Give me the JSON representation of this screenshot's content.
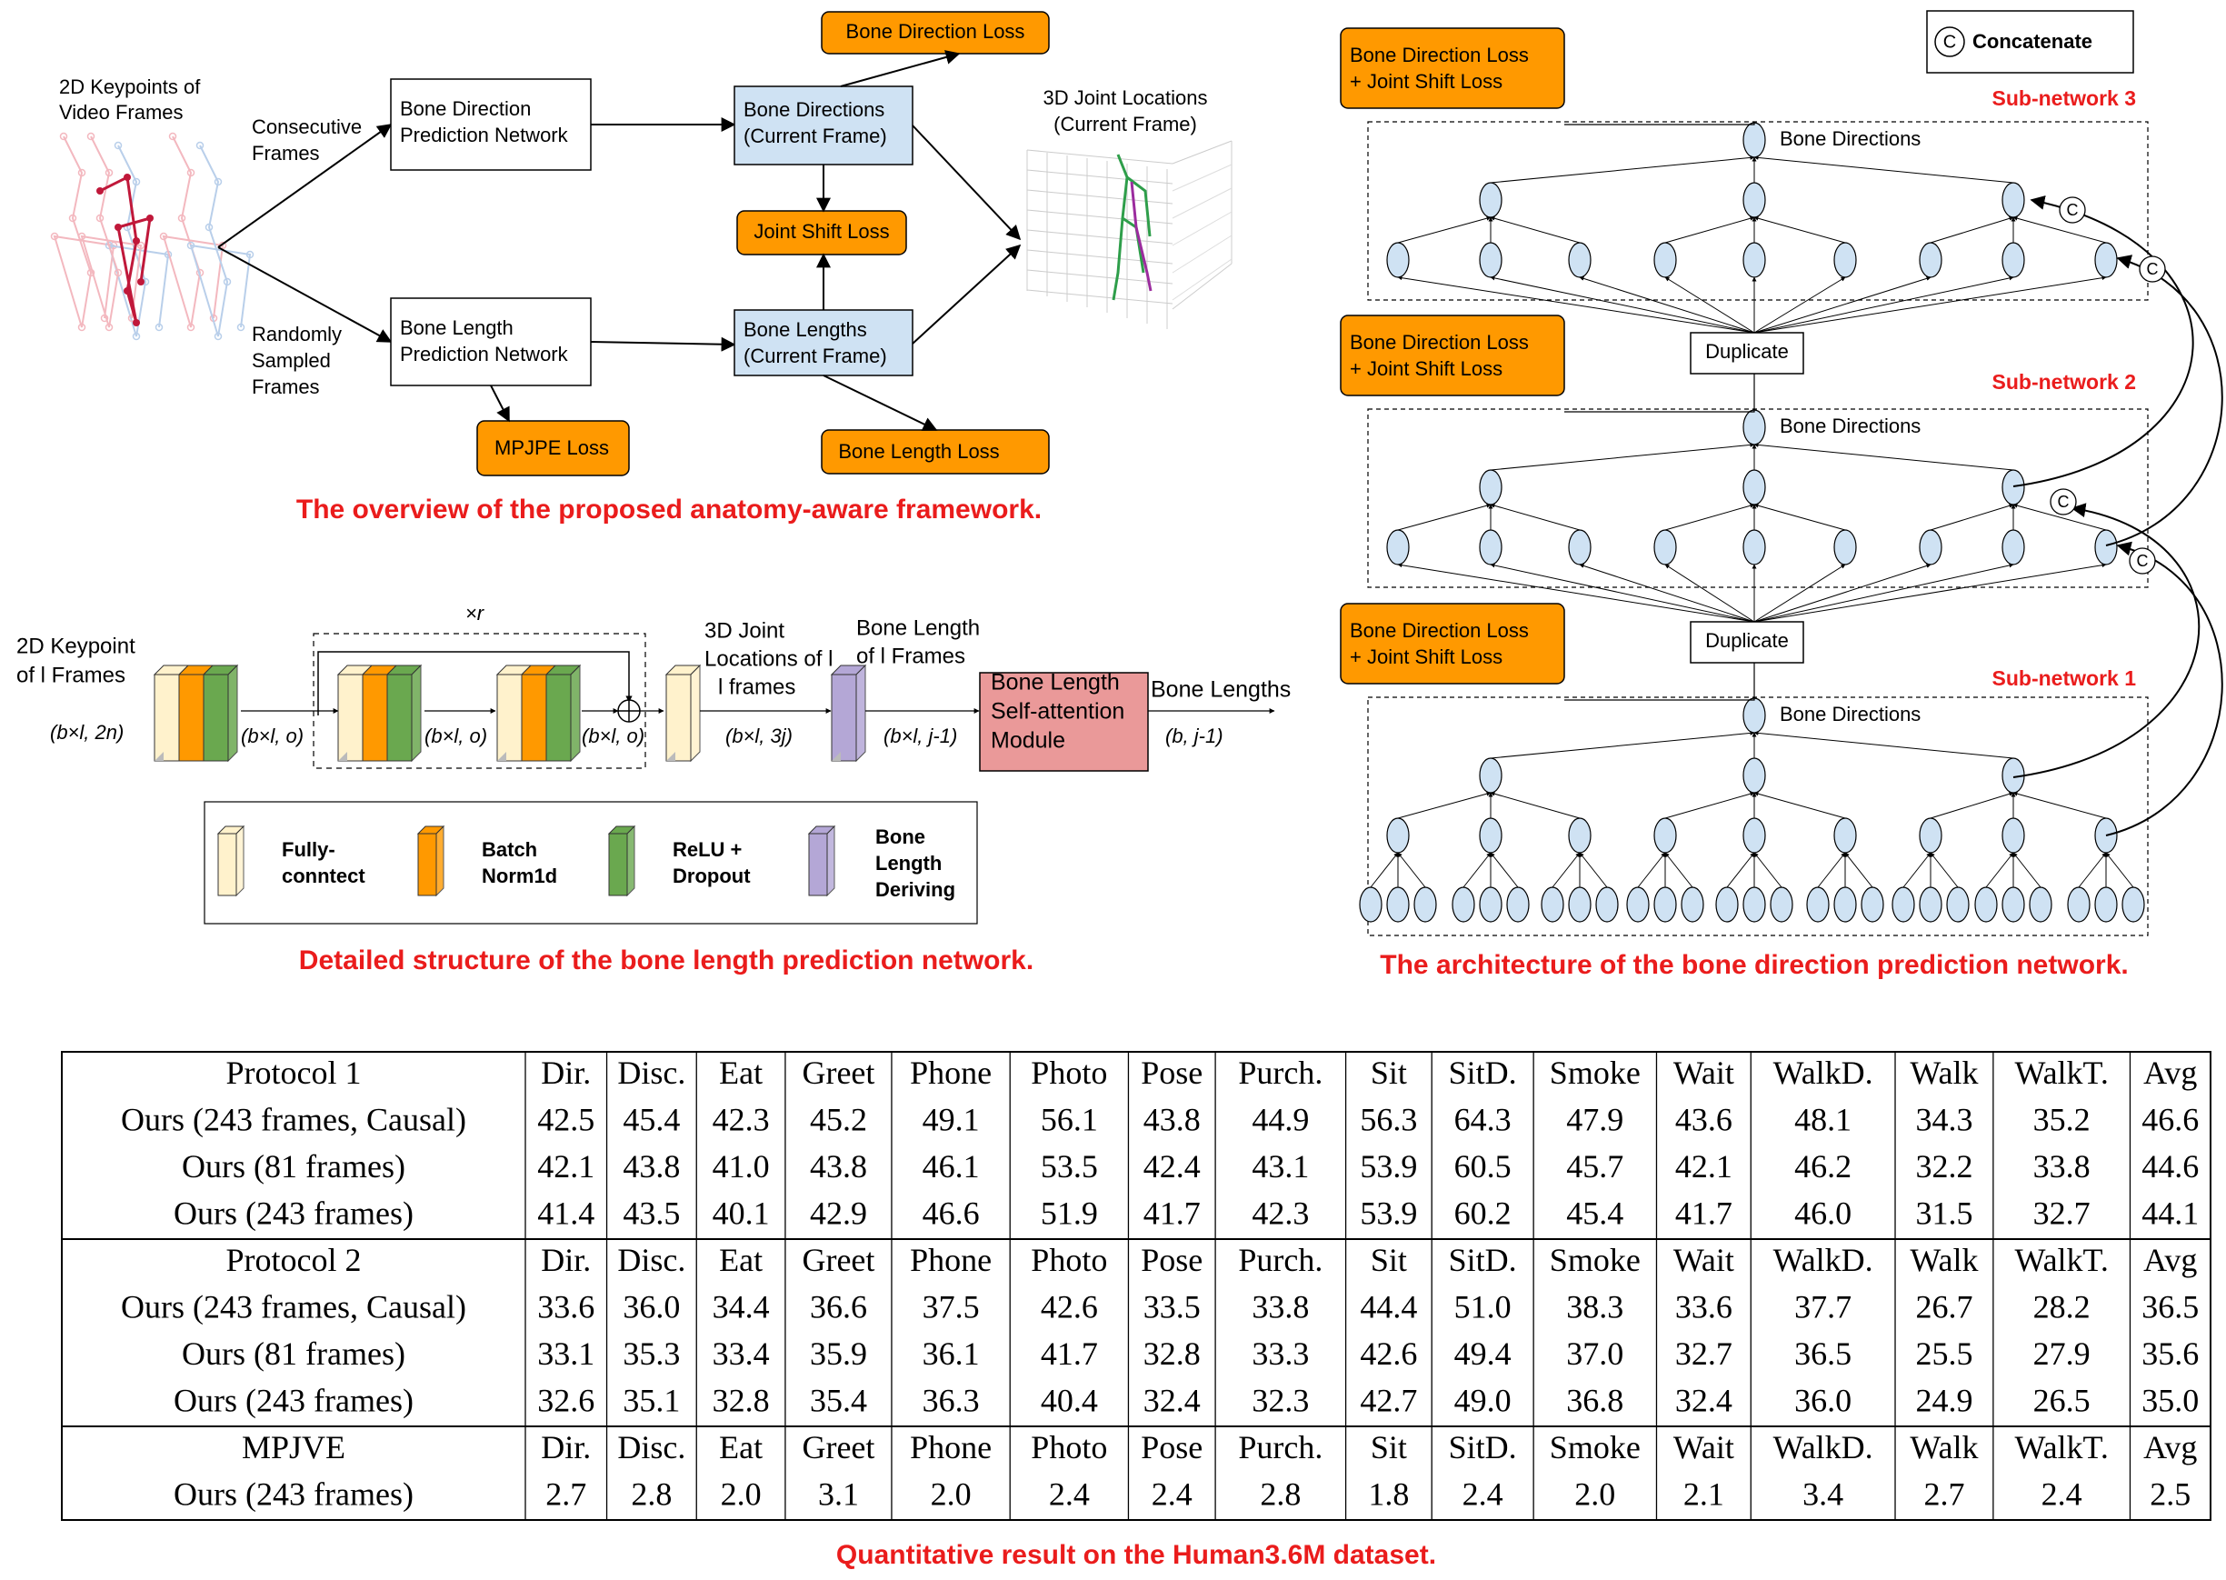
{
  "colors": {
    "orange": "#FF9900",
    "light_blue": "#CFE2F3",
    "red": "#EA1C1C",
    "fc_yellow": "#FFF2CC",
    "bn_orange": "#FF9900",
    "relu_green": "#6AA84F",
    "bone_purple": "#B4A7D6",
    "attn_pink": "#EA9999"
  },
  "overview": {
    "input_label": [
      "2D Keypoints of",
      "Video Frames"
    ],
    "consecutive_label": [
      "Consecutive",
      "Frames"
    ],
    "random_label": [
      "Randomly",
      "Sampled",
      "Frames"
    ],
    "bdpn": [
      "Bone Direction",
      "Prediction Network"
    ],
    "blpn": [
      "Bone Length",
      "Prediction Network"
    ],
    "bone_directions": [
      "Bone Directions",
      "(Current Frame)"
    ],
    "bone_lengths": [
      "Bone Lengths",
      "(Current Frame)"
    ],
    "bone_direction_loss": "Bone Direction Loss",
    "joint_shift_loss": "Joint Shift Loss",
    "bone_length_loss": "Bone Length Loss",
    "mpjpe_loss": "MPJPE Loss",
    "joint_locations": [
      "3D Joint Locations",
      "(Current Frame)"
    ],
    "caption": "The overview of the proposed anatomy-aware framework."
  },
  "length_net": {
    "input_label": [
      "2D Keypoint",
      "of l Frames"
    ],
    "dim_input": "(b×l, 2n)",
    "dim_1": "(b×l, o)",
    "dim_2": "(b×l, o)",
    "dim_3": "(b×l, o)",
    "repeat": "×r",
    "joint_label": [
      "3D Joint",
      "Locations of l",
      "l frames"
    ],
    "dim_4": "(b×l, 3j)",
    "bone_len_label": [
      "Bone Length",
      "of l Frames"
    ],
    "dim_5": "(b×l, j-1)",
    "attention": [
      "Bone Length",
      "Self-attention",
      "Module"
    ],
    "output_label": "Bone Lengths",
    "dim_out": "(b, j-1)",
    "legend": [
      {
        "name": "fc",
        "label": [
          "Fully-",
          "conntect"
        ]
      },
      {
        "name": "bn",
        "label": [
          "Batch",
          "Norm1d"
        ]
      },
      {
        "name": "relu",
        "label": [
          "ReLU +",
          "Dropout"
        ]
      },
      {
        "name": "bone",
        "label": [
          "Bone",
          "Length",
          "Deriving"
        ]
      }
    ],
    "caption": "Detailed structure of the bone length prediction network."
  },
  "direction_net": {
    "concat_legend": "Concatenate",
    "concat_symbol": "C",
    "loss_box": [
      "Bone Direction Loss",
      "+ Joint Shift Loss"
    ],
    "bone_directions": "Bone Directions",
    "duplicate": "Duplicate",
    "subnet_1": "Sub-network 1",
    "subnet_2": "Sub-network 2",
    "subnet_3": "Sub-network 3",
    "caption": "The architecture of the bone direction prediction network."
  },
  "table": {
    "columns": [
      "Dir.",
      "Disc.",
      "Eat",
      "Greet",
      "Phone",
      "Photo",
      "Pose",
      "Purch.",
      "Sit",
      "SitD.",
      "Smoke",
      "Wait",
      "WalkD.",
      "Walk",
      "WalkT.",
      "Avg"
    ],
    "sections": [
      {
        "header": "Protocol 1",
        "rows": [
          {
            "label": "Ours (243 frames, Causal)",
            "values": [
              "42.5",
              "45.4",
              "42.3",
              "45.2",
              "49.1",
              "56.1",
              "43.8",
              "44.9",
              "56.3",
              "64.3",
              "47.9",
              "43.6",
              "48.1",
              "34.3",
              "35.2",
              "46.6"
            ]
          },
          {
            "label": "Ours (81 frames)",
            "values": [
              "42.1",
              "43.8",
              "41.0",
              "43.8",
              "46.1",
              "53.5",
              "42.4",
              "43.1",
              "53.9",
              "60.5",
              "45.7",
              "42.1",
              "46.2",
              "32.2",
              "33.8",
              "44.6"
            ]
          },
          {
            "label": "Ours (243 frames)",
            "values": [
              "41.4",
              "43.5",
              "40.1",
              "42.9",
              "46.6",
              "51.9",
              "41.7",
              "42.3",
              "53.9",
              "60.2",
              "45.4",
              "41.7",
              "46.0",
              "31.5",
              "32.7",
              "44.1"
            ]
          }
        ]
      },
      {
        "header": "Protocol 2",
        "rows": [
          {
            "label": "Ours (243 frames, Causal)",
            "values": [
              "33.6",
              "36.0",
              "34.4",
              "36.6",
              "37.5",
              "42.6",
              "33.5",
              "33.8",
              "44.4",
              "51.0",
              "38.3",
              "33.6",
              "37.7",
              "26.7",
              "28.2",
              "36.5"
            ]
          },
          {
            "label": "Ours (81 frames)",
            "values": [
              "33.1",
              "35.3",
              "33.4",
              "35.9",
              "36.1",
              "41.7",
              "32.8",
              "33.3",
              "42.6",
              "49.4",
              "37.0",
              "32.7",
              "36.5",
              "25.5",
              "27.9",
              "35.6"
            ]
          },
          {
            "label": "Ours (243 frames)",
            "values": [
              "32.6",
              "35.1",
              "32.8",
              "35.4",
              "36.3",
              "40.4",
              "32.4",
              "32.3",
              "42.7",
              "49.0",
              "36.8",
              "32.4",
              "36.0",
              "24.9",
              "26.5",
              "35.0"
            ]
          }
        ]
      },
      {
        "header": "MPJVE",
        "rows": [
          {
            "label": "Ours (243 frames)",
            "values": [
              "2.7",
              "2.8",
              "2.0",
              "3.1",
              "2.0",
              "2.4",
              "2.4",
              "2.8",
              "1.8",
              "2.4",
              "2.0",
              "2.1",
              "3.4",
              "2.7",
              "2.4",
              "2.5"
            ]
          }
        ]
      }
    ],
    "caption": "Quantitative result on the Human3.6M dataset."
  }
}
